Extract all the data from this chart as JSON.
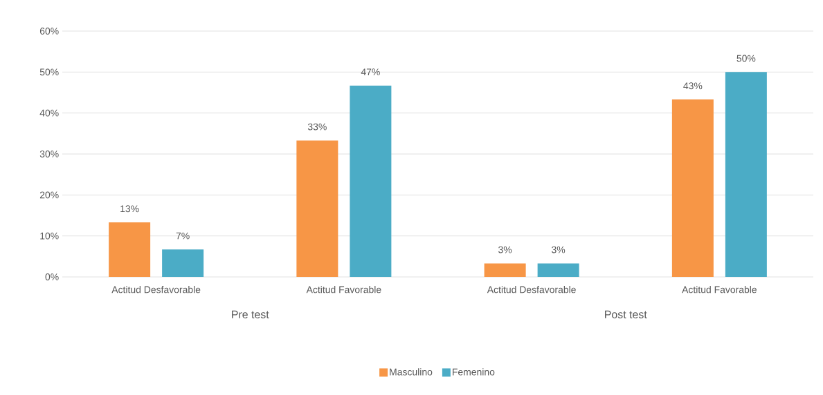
{
  "chart_data": {
    "type": "bar",
    "categories": [
      "Actitud Desfavorable",
      "Actitud Favorable",
      "Actitud Desfavorable",
      "Actitud Favorable"
    ],
    "series": [
      {
        "name": "Masculino",
        "color": "#f79646",
        "values": [
          13.3,
          33.3,
          3.3,
          43.3
        ],
        "value_labels": [
          "13%",
          "33%",
          "3%",
          "43%"
        ]
      },
      {
        "name": "Femenino",
        "color": "#4bacc6",
        "values": [
          6.7,
          46.7,
          3.3,
          50
        ],
        "value_labels": [
          "7%",
          "47%",
          "3%",
          "50%"
        ]
      }
    ],
    "ylim": [
      0,
      60
    ],
    "yticks": [
      {
        "value": 0,
        "label": "0%"
      },
      {
        "value": 10,
        "label": "10%"
      },
      {
        "value": 20,
        "label": "20%"
      },
      {
        "value": 30,
        "label": "30%"
      },
      {
        "value": 40,
        "label": "40%"
      },
      {
        "value": 50,
        "label": "50%"
      },
      {
        "value": 60,
        "label": "60%"
      }
    ],
    "annotations": [
      "Pre test",
      "Post test"
    ],
    "grid": "y",
    "legend": "bottom"
  }
}
